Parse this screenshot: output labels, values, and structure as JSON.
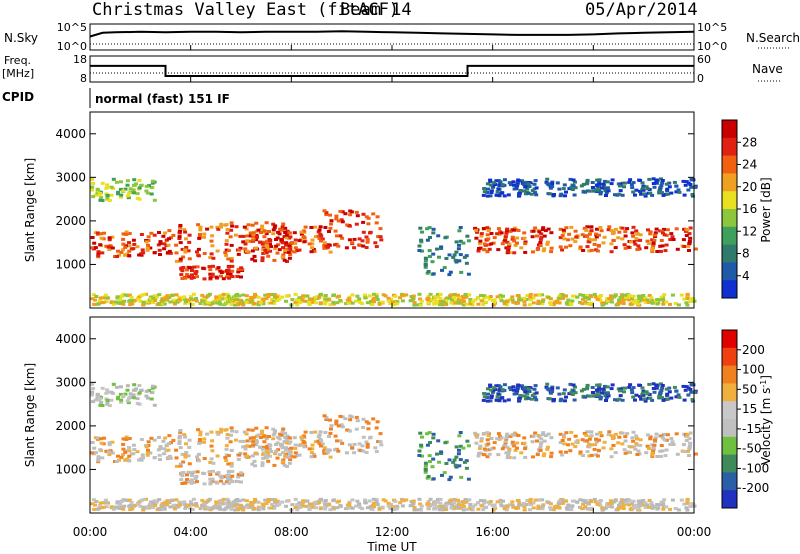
{
  "header": {
    "title": "Christmas Valley East (fitACF)",
    "beam": "Beam 14",
    "date": "05/Apr/2014"
  },
  "left_labels": {
    "nsky": "N.Sky",
    "freq": "Freq.",
    "freq_unit": "[MHz]",
    "cpid": "CPID"
  },
  "right_labels": {
    "nsearch": "N.Search",
    "nave": "Nave"
  },
  "cpid_text": "normal (fast) 151 IF",
  "time_axis": {
    "label": "Time UT",
    "ticks": [
      "00:00",
      "04:00",
      "08:00",
      "12:00",
      "16:00",
      "20:00",
      "00:00"
    ]
  },
  "colors": {
    "power": [
      "#1030d0",
      "#1f5aa8",
      "#2f7a6a",
      "#3ea05a",
      "#8cc63c",
      "#e8e020",
      "#f0a020",
      "#f06010",
      "#e02010",
      "#c80000"
    ],
    "velocity": [
      "#2030c0",
      "#2a5fa8",
      "#3f8a5a",
      "#70c040",
      "#c0c0c0",
      "#c8c8c8",
      "#f0b040",
      "#f08020",
      "#f04010",
      "#e00000"
    ]
  },
  "chart_data": [
    {
      "type": "line",
      "title": "N.Sky / N.Search",
      "ylabel_left": "N.Sky",
      "ylabel_right": "N.Search",
      "left_ticks": [
        "10^5",
        "10^0"
      ],
      "right_ticks": [
        "10^5",
        "10^0"
      ],
      "x_hours": [
        0,
        0.5,
        1,
        2,
        3,
        4,
        5,
        6,
        7,
        8,
        9,
        10,
        11,
        12,
        13,
        14,
        15,
        16,
        17,
        18,
        19,
        20,
        21,
        22,
        23,
        24
      ],
      "series": [
        {
          "name": "N.Sky",
          "values": [
            2.6,
            3.3,
            3.4,
            3.5,
            3.4,
            3.5,
            3.5,
            3.4,
            3.5,
            3.5,
            3.5,
            3.6,
            3.5,
            3.4,
            3.3,
            3.2,
            3.1,
            3.0,
            2.9,
            2.9,
            2.9,
            3.0,
            3.2,
            3.3,
            3.4,
            3.5
          ]
        }
      ]
    },
    {
      "type": "line",
      "title": "Freq / Nave",
      "ylabel_left": "Freq. [MHz]",
      "ylabel_right": "Nave",
      "left_ticks": [
        "18",
        "8"
      ],
      "right_ticks": [
        "60",
        "0"
      ],
      "x_hours": [
        0,
        3,
        3,
        15,
        15,
        24
      ],
      "series": [
        {
          "name": "Freq.",
          "values": [
            14.2,
            14.2,
            10.3,
            10.3,
            14.2,
            14.2
          ]
        }
      ]
    },
    {
      "type": "heatmap",
      "ylabel": "Slant Range [km]",
      "yticks": [
        1000,
        2000,
        3000,
        4000
      ],
      "colorbar_label": "Power [dB]",
      "colorbar_ticks": [
        "28",
        "24",
        "20",
        "16",
        "12",
        "8",
        "4"
      ]
    },
    {
      "type": "heatmap",
      "ylabel": "Slant Range [km]",
      "yticks": [
        1000,
        2000,
        3000,
        4000
      ],
      "xlabel": "Time UT",
      "colorbar_label": "Velocity [m s^-1]",
      "colorbar_ticks": [
        "200",
        "100",
        "50",
        "15",
        "-15",
        "-50",
        "-100",
        "-200"
      ]
    }
  ]
}
